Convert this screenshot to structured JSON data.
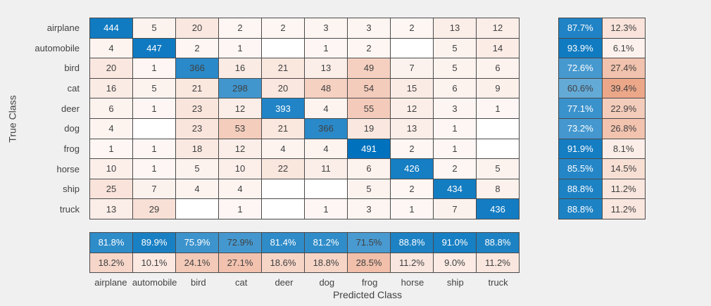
{
  "chart_data": {
    "type": "heatmap",
    "subtype": "confusion-matrix",
    "title": "",
    "xlabel": "Predicted Class",
    "ylabel": "True Class",
    "classes": [
      "airplane",
      "automobile",
      "bird",
      "cat",
      "deer",
      "dog",
      "frog",
      "horse",
      "ship",
      "truck"
    ],
    "matrix": [
      [
        444,
        5,
        20,
        2,
        2,
        3,
        3,
        2,
        13,
        12
      ],
      [
        4,
        447,
        2,
        1,
        0,
        1,
        2,
        0,
        5,
        14
      ],
      [
        20,
        1,
        366,
        16,
        21,
        13,
        49,
        7,
        5,
        6
      ],
      [
        16,
        5,
        21,
        298,
        20,
        48,
        54,
        15,
        6,
        9
      ],
      [
        6,
        1,
        23,
        12,
        393,
        4,
        55,
        12,
        3,
        1
      ],
      [
        4,
        0,
        23,
        53,
        21,
        366,
        19,
        13,
        1,
        0
      ],
      [
        1,
        1,
        18,
        12,
        4,
        4,
        491,
        2,
        1,
        0
      ],
      [
        10,
        1,
        5,
        10,
        22,
        11,
        6,
        426,
        2,
        5
      ],
      [
        25,
        7,
        4,
        4,
        0,
        0,
        5,
        2,
        434,
        8
      ],
      [
        13,
        29,
        0,
        1,
        0,
        1,
        3,
        1,
        7,
        436
      ]
    ],
    "row_summary": {
      "success_pct": [
        87.7,
        93.9,
        72.6,
        60.6,
        77.1,
        73.2,
        91.9,
        85.5,
        88.8,
        88.8
      ],
      "miss_pct": [
        12.3,
        6.1,
        27.4,
        39.4,
        22.9,
        26.8,
        8.1,
        14.5,
        11.2,
        11.2
      ]
    },
    "col_summary": {
      "success_pct": [
        81.8,
        89.9,
        75.9,
        72.9,
        81.4,
        81.2,
        71.5,
        88.8,
        91.0,
        88.8
      ],
      "miss_pct": [
        18.2,
        10.1,
        24.1,
        27.1,
        18.6,
        18.8,
        28.5,
        11.2,
        9.0,
        11.2
      ]
    },
    "layout": {
      "grid": "on",
      "legend_position": "none",
      "blank_cells_rendered_white": true
    },
    "colors": {
      "diagonal_base": "#0072bd",
      "off_diagonal_base": "#d95319",
      "background": "#f0f0f0",
      "grid_line": "#4a4a4a",
      "text_dark": "#404040",
      "text_light": "#ffffff",
      "empty_cell": "#ffffff"
    }
  }
}
